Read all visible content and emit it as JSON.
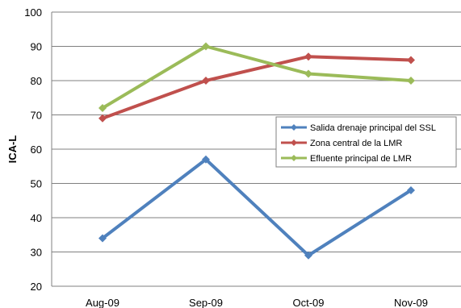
{
  "chart_data": {
    "type": "line",
    "title": "",
    "xlabel": "",
    "ylabel": "ICA-L",
    "categories": [
      "Aug-09",
      "Sep-09",
      "Oct-09",
      "Nov-09"
    ],
    "ylim": [
      20,
      100
    ],
    "yticks": [
      20,
      30,
      40,
      50,
      60,
      70,
      80,
      90,
      100
    ],
    "grid": "horizontal",
    "legend_position": "right",
    "series": [
      {
        "name": "Salida drenaje principal del SSL",
        "color": "#4F81BD",
        "values": [
          34,
          57,
          29,
          48
        ]
      },
      {
        "name": "Zona central de la LMR",
        "color": "#C0504D",
        "values": [
          69,
          80,
          87,
          86
        ]
      },
      {
        "name": "Efluente principal de LMR",
        "color": "#9BBB59",
        "values": [
          72,
          90,
          82,
          80
        ]
      }
    ]
  }
}
